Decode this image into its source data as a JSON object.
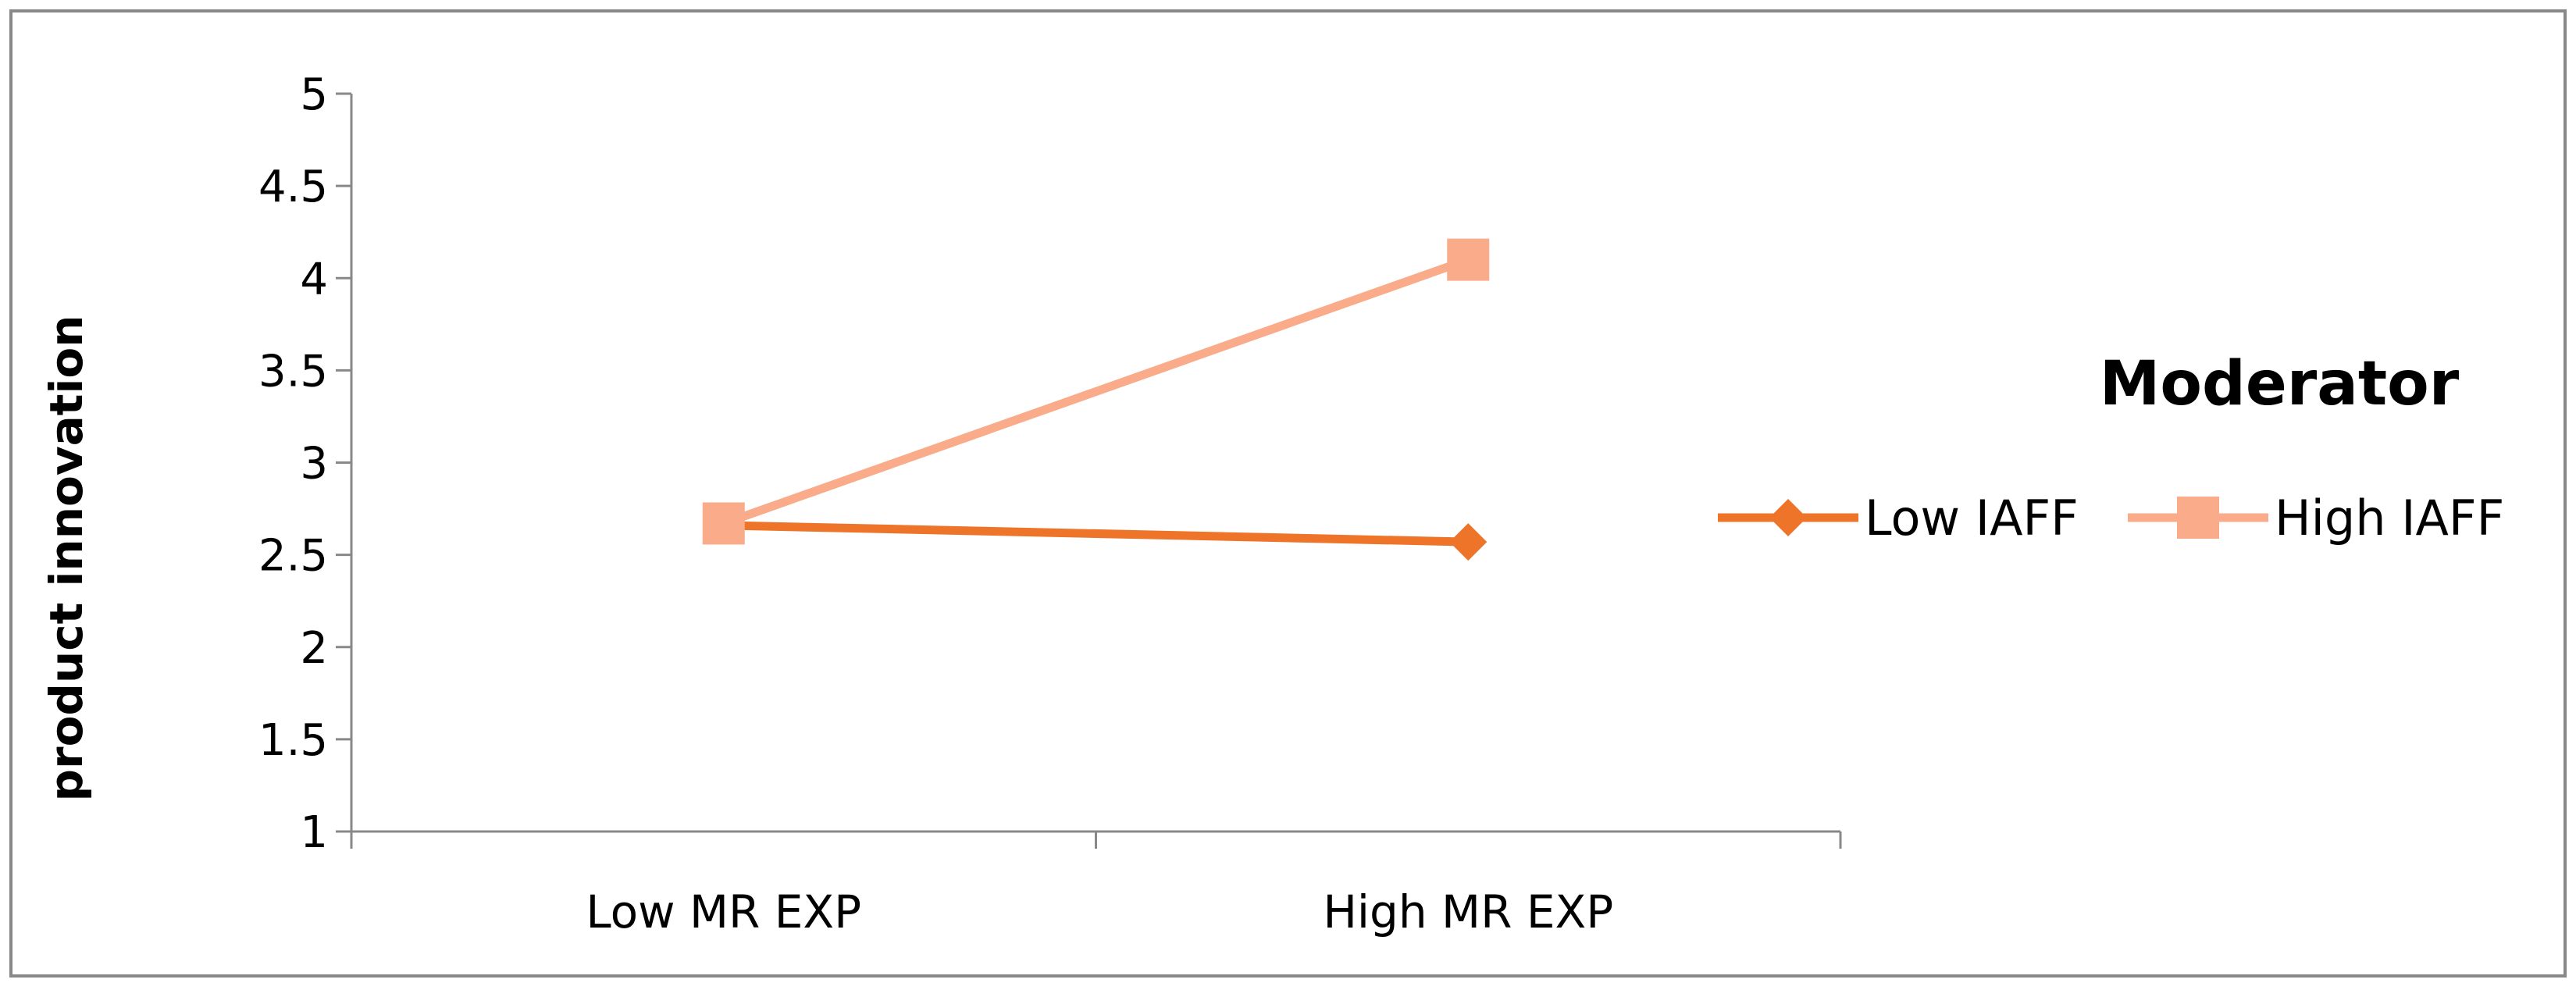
{
  "chart_data": {
    "type": "line",
    "title": "",
    "xlabel": "",
    "ylabel": "product innovation",
    "categories": [
      "Low MR EXP",
      "High MR EXP"
    ],
    "ylim": [
      1,
      5
    ],
    "yticks": [
      "1",
      "1.5",
      "2",
      "2.5",
      "3",
      "3.5",
      "4",
      "4.5",
      "5"
    ],
    "grid": false,
    "legend": {
      "title": "Moderator",
      "placement": "right"
    },
    "series": [
      {
        "name": "Low IAFF",
        "values": [
          2.66,
          2.57
        ],
        "color": "#ED7428",
        "marker": "diamond"
      },
      {
        "name": "High IAFF",
        "values": [
          2.67,
          4.1
        ],
        "color": "#F9AB8A",
        "marker": "square"
      }
    ]
  }
}
